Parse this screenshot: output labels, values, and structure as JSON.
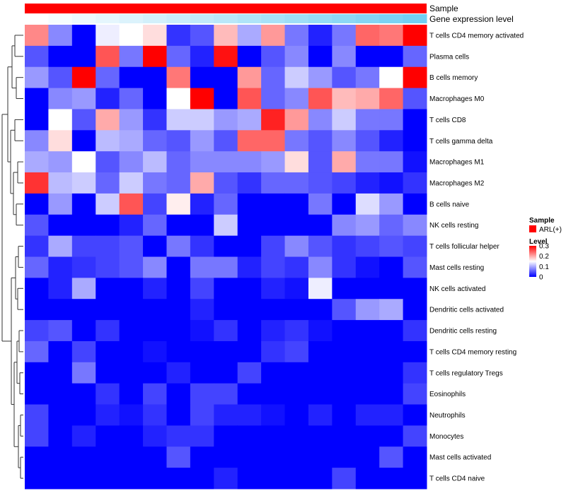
{
  "chart_data": {
    "type": "heatmap",
    "title": "",
    "annotation_tracks": [
      {
        "label": "Sample",
        "kind": "solid",
        "color": "#ff0000"
      },
      {
        "label": "Gene expression level",
        "kind": "gradient",
        "color_low": "#ffffff",
        "color_high": "#4fc3f0"
      }
    ],
    "rows": [
      "T cells CD4 memory activated",
      "Plasma cells",
      "B cells memory",
      "Macrophages M0",
      "T cells CD8",
      "T cells gamma delta",
      "Macrophages M1",
      "Macrophages M2",
      "B cells naive",
      "NK cells resting",
      "T cells follicular helper",
      "Mast cells resting",
      "NK cells activated",
      "Dendritic cells activated",
      "Dendritic cells resting",
      "T cells CD4 memory resting",
      "T cells regulatory  Tregs",
      "Eosinophils",
      "Neutrophils",
      "Monocytes",
      "Mast cells activated",
      "T cells CD4 naive"
    ],
    "n_columns": 17,
    "values": [
      [
        0.22,
        0.08,
        0.0,
        0.14,
        0.15,
        0.17,
        0.03,
        0.05,
        0.19,
        0.1,
        0.21,
        0.07,
        0.02,
        0.07,
        0.24,
        0.23,
        0.3
      ],
      [
        0.05,
        0.0,
        0.0,
        0.25,
        0.07,
        0.3,
        0.06,
        0.02,
        0.29,
        0.0,
        0.05,
        0.08,
        0.0,
        0.08,
        0.0,
        0.0,
        0.06
      ],
      [
        0.09,
        0.05,
        0.3,
        0.06,
        0.0,
        0.0,
        0.23,
        0.0,
        0.0,
        0.21,
        0.06,
        0.12,
        0.09,
        0.05,
        0.07,
        0.15,
        0.3
      ],
      [
        0.0,
        0.08,
        0.09,
        0.02,
        0.06,
        0.0,
        0.15,
        0.3,
        0.0,
        0.25,
        0.06,
        0.08,
        0.25,
        0.19,
        0.2,
        0.24,
        0.05
      ],
      [
        0.0,
        0.15,
        0.05,
        0.2,
        0.09,
        0.03,
        0.12,
        0.12,
        0.09,
        0.1,
        0.28,
        0.21,
        0.08,
        0.12,
        0.07,
        0.07,
        0.0
      ],
      [
        0.08,
        0.17,
        0.0,
        0.11,
        0.1,
        0.06,
        0.05,
        0.09,
        0.05,
        0.24,
        0.24,
        0.07,
        0.05,
        0.08,
        0.05,
        0.02,
        0.0
      ],
      [
        0.1,
        0.09,
        0.15,
        0.05,
        0.08,
        0.11,
        0.06,
        0.08,
        0.08,
        0.08,
        0.09,
        0.17,
        0.05,
        0.2,
        0.07,
        0.07,
        0.01
      ],
      [
        0.27,
        0.11,
        0.12,
        0.06,
        0.12,
        0.07,
        0.06,
        0.2,
        0.05,
        0.03,
        0.06,
        0.06,
        0.05,
        0.04,
        0.02,
        0.01,
        0.03
      ],
      [
        0.0,
        0.09,
        0.0,
        0.12,
        0.25,
        0.04,
        0.16,
        0.02,
        0.06,
        0.0,
        0.0,
        0.0,
        0.07,
        0.0,
        0.13,
        0.09,
        0.0
      ],
      [
        0.05,
        0.0,
        0.0,
        0.0,
        0.02,
        0.06,
        0.0,
        0.0,
        0.12,
        0.0,
        0.0,
        0.0,
        0.0,
        0.08,
        0.09,
        0.06,
        0.08
      ],
      [
        0.03,
        0.1,
        0.04,
        0.04,
        0.05,
        0.0,
        0.07,
        0.03,
        0.0,
        0.0,
        0.04,
        0.08,
        0.05,
        0.03,
        0.04,
        0.05,
        0.04
      ],
      [
        0.06,
        0.02,
        0.03,
        0.04,
        0.05,
        0.08,
        0.0,
        0.07,
        0.07,
        0.02,
        0.04,
        0.03,
        0.08,
        0.03,
        0.01,
        0.0,
        0.05
      ],
      [
        0.0,
        0.02,
        0.1,
        0.0,
        0.0,
        0.02,
        0.0,
        0.04,
        0.0,
        0.0,
        0.02,
        0.01,
        0.14,
        0.0,
        0.0,
        0.0,
        0.0
      ],
      [
        0.0,
        0.0,
        0.0,
        0.0,
        0.0,
        0.0,
        0.0,
        0.02,
        0.0,
        0.0,
        0.0,
        0.0,
        0.0,
        0.05,
        0.09,
        0.1,
        0.0
      ],
      [
        0.04,
        0.05,
        0.0,
        0.03,
        0.0,
        0.0,
        0.0,
        0.01,
        0.03,
        0.0,
        0.02,
        0.03,
        0.01,
        0.0,
        0.0,
        0.0,
        0.03
      ],
      [
        0.06,
        0.0,
        0.04,
        0.0,
        0.0,
        0.01,
        0.0,
        0.0,
        0.0,
        0.0,
        0.03,
        0.04,
        0.0,
        0.0,
        0.0,
        0.0,
        0.0
      ],
      [
        0.0,
        0.0,
        0.07,
        0.0,
        0.0,
        0.0,
        0.02,
        0.0,
        0.0,
        0.04,
        0.0,
        0.0,
        0.0,
        0.0,
        0.0,
        0.0,
        0.03
      ],
      [
        0.0,
        0.0,
        0.0,
        0.03,
        0.0,
        0.04,
        0.0,
        0.04,
        0.04,
        0.0,
        0.0,
        0.0,
        0.0,
        0.0,
        0.0,
        0.0,
        0.04
      ],
      [
        0.04,
        0.0,
        0.0,
        0.02,
        0.01,
        0.03,
        0.0,
        0.04,
        0.02,
        0.02,
        0.01,
        0.0,
        0.02,
        0.0,
        0.02,
        0.02,
        0.0
      ],
      [
        0.04,
        0.0,
        0.02,
        0.0,
        0.0,
        0.02,
        0.03,
        0.03,
        0.0,
        0.0,
        0.0,
        0.0,
        0.0,
        0.0,
        0.0,
        0.0,
        0.04
      ],
      [
        0.0,
        0.0,
        0.0,
        0.0,
        0.0,
        0.0,
        0.05,
        0.0,
        0.0,
        0.0,
        0.0,
        0.0,
        0.0,
        0.0,
        0.0,
        0.05,
        0.0
      ],
      [
        0.0,
        0.0,
        0.0,
        0.0,
        0.0,
        0.0,
        0.0,
        0.0,
        0.02,
        0.0,
        0.0,
        0.0,
        0.0,
        0.04,
        0.0,
        0.0,
        0.0
      ]
    ],
    "gene_expression_level": [
      0.0,
      0.05,
      0.1,
      0.15,
      0.2,
      0.25,
      0.3,
      0.35,
      0.4,
      0.45,
      0.5,
      0.55,
      0.6,
      0.65,
      0.7,
      0.75,
      0.8
    ],
    "colorscale": {
      "min": 0,
      "mid": 0.15,
      "max": 0.3,
      "low_color": "#0000ff",
      "mid_color": "#ffffff",
      "high_color": "#ff0000"
    },
    "legend": {
      "sample_title": "Sample",
      "sample_entry": "ARL(+)",
      "sample_color": "#ff0000",
      "level_title": "Level",
      "level_ticks": [
        0.3,
        0.2,
        0.1,
        0
      ],
      "level_tick_labels": [
        "0.3",
        "0.2",
        "0.1",
        "0"
      ],
      "position": "right"
    }
  }
}
